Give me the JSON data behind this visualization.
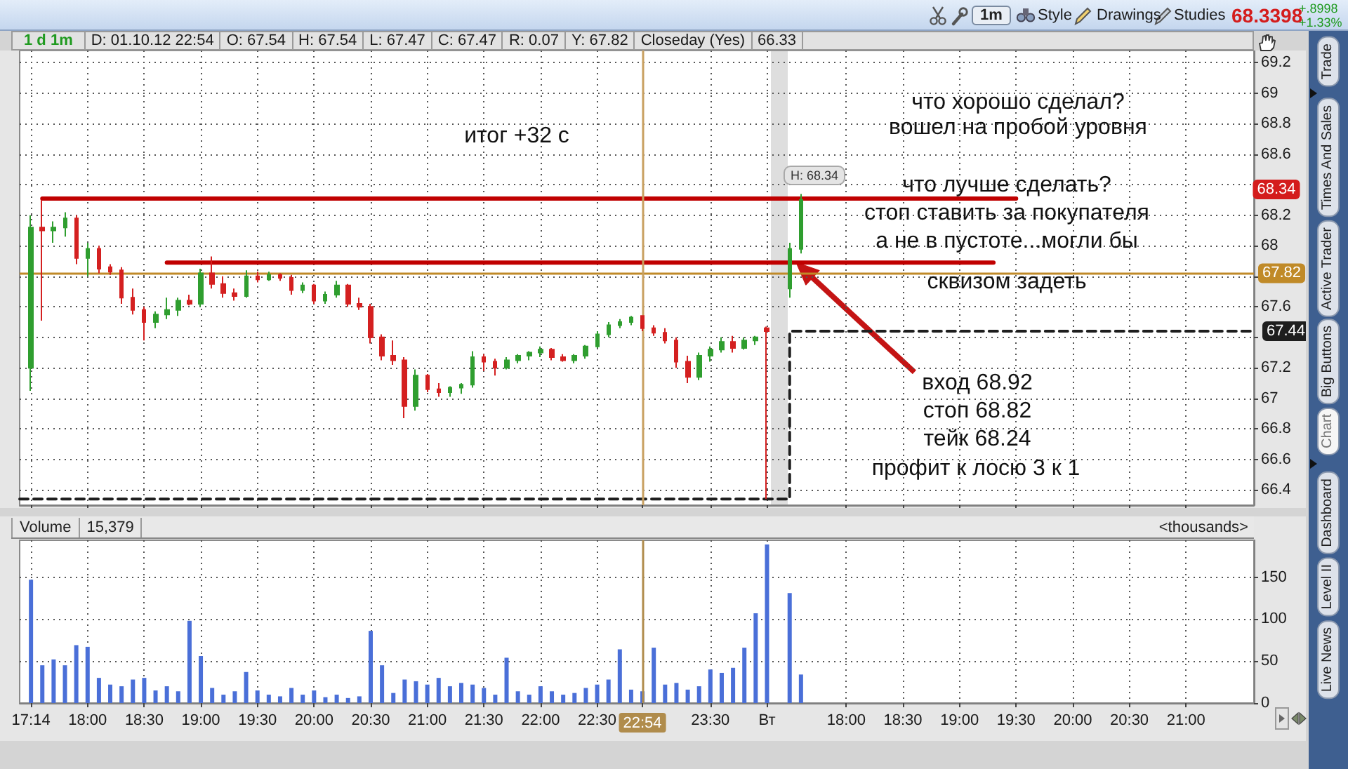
{
  "chart_data": [
    {
      "type": "candlestick",
      "categories": [
        null,
        "17:14",
        null,
        null,
        null,
        null,
        "18:00",
        null,
        null,
        null,
        null,
        "18:30",
        null,
        null,
        null,
        null,
        "19:00",
        null,
        null,
        null,
        null,
        "19:30",
        null,
        null,
        null,
        null,
        "20:00",
        null,
        null,
        null,
        null,
        "20:30",
        null,
        null,
        null,
        null,
        "21:00",
        null,
        null,
        null,
        null,
        "21:30",
        null,
        null,
        null,
        null,
        "22:00",
        null,
        null,
        null,
        null,
        "22:30",
        null,
        null,
        null,
        "22:54",
        null,
        null,
        null,
        null,
        null,
        "23:30",
        null,
        null,
        null,
        null,
        "Вт",
        null,
        null,
        null,
        null,
        null,
        null,
        "18:00",
        null,
        null,
        null,
        null,
        "18:30",
        null,
        null,
        null,
        null,
        "19:00",
        null,
        null,
        null,
        null,
        "19:30",
        null,
        null,
        null,
        null,
        "20:00",
        null,
        null,
        null,
        null,
        "20:30",
        null,
        null,
        null,
        null,
        "21:00",
        null,
        null,
        null,
        null,
        null,
        null
      ],
      "ohlc": [
        null,
        [
          67.2,
          68.2,
          67.05,
          68.12
        ],
        [
          68.12,
          68.3,
          67.51,
          68.1
        ],
        [
          68.1,
          68.16,
          68.02,
          68.12
        ],
        [
          68.12,
          68.22,
          68.06,
          68.18
        ],
        [
          68.18,
          68.2,
          67.88,
          67.92
        ],
        [
          67.92,
          68.02,
          67.8,
          67.98
        ],
        [
          67.98,
          68,
          67.82,
          67.85
        ],
        [
          67.86,
          67.88,
          67.81,
          67.83
        ],
        [
          67.84,
          67.86,
          67.62,
          67.66
        ],
        [
          67.66,
          67.72,
          67.55,
          67.58
        ],
        [
          67.58,
          67.6,
          67.38,
          67.5
        ],
        [
          67.5,
          67.57,
          67.46,
          67.55
        ],
        [
          67.55,
          67.66,
          67.52,
          67.58
        ],
        [
          67.58,
          67.66,
          67.54,
          67.64
        ],
        [
          67.64,
          67.68,
          67.61,
          67.62
        ],
        [
          67.62,
          67.85,
          67.6,
          67.82
        ],
        [
          67.82,
          67.93,
          67.72,
          67.75
        ],
        [
          67.75,
          67.8,
          67.66,
          67.69
        ],
        [
          67.69,
          67.72,
          67.64,
          67.67
        ],
        [
          67.67,
          67.84,
          67.66,
          67.8
        ],
        [
          67.8,
          67.83,
          67.76,
          67.78
        ],
        [
          67.78,
          67.83,
          67.77,
          67.81
        ],
        [
          67.81,
          67.82,
          67.77,
          67.79
        ],
        [
          67.79,
          67.81,
          67.68,
          67.71
        ],
        [
          67.71,
          67.76,
          67.69,
          67.74
        ],
        [
          67.74,
          67.75,
          67.62,
          67.64
        ],
        [
          67.64,
          67.7,
          67.62,
          67.68
        ],
        [
          67.68,
          67.77,
          67.66,
          67.74
        ],
        [
          67.74,
          67.75,
          67.6,
          67.62
        ],
        [
          67.62,
          67.66,
          67.58,
          67.6
        ],
        [
          67.6,
          67.62,
          67.36,
          67.4
        ],
        [
          67.4,
          67.42,
          67.25,
          67.28
        ],
        [
          67.28,
          67.38,
          67.22,
          67.25
        ],
        [
          67.25,
          67.27,
          66.87,
          66.95
        ],
        [
          66.95,
          67.19,
          66.92,
          67.15
        ],
        [
          67.15,
          67.16,
          67.04,
          67.06
        ],
        [
          67.06,
          67.1,
          67.01,
          67.04
        ],
        [
          67.04,
          67.08,
          67.01,
          67.07
        ],
        [
          67.07,
          67.1,
          67.03,
          67.09
        ],
        [
          67.09,
          67.31,
          67.07,
          67.27
        ],
        [
          67.27,
          67.29,
          67.18,
          67.24
        ],
        [
          67.24,
          67.26,
          67.15,
          67.2
        ],
        [
          67.2,
          67.27,
          67.19,
          67.25
        ],
        [
          67.25,
          67.29,
          67.23,
          67.28
        ],
        [
          67.28,
          67.31,
          67.25,
          67.3
        ],
        [
          67.3,
          67.34,
          67.27,
          67.32
        ],
        [
          67.32,
          67.33,
          67.25,
          67.27
        ],
        [
          67.27,
          67.29,
          67.24,
          67.25
        ],
        [
          67.25,
          67.29,
          67.23,
          67.28
        ],
        [
          67.28,
          67.35,
          67.26,
          67.34
        ],
        [
          67.34,
          67.44,
          67.33,
          67.42
        ],
        [
          67.42,
          67.5,
          67.4,
          67.48
        ],
        [
          67.48,
          67.52,
          67.46,
          67.5
        ],
        [
          67.5,
          67.54,
          67.48,
          67.53
        ],
        [
          67.54,
          67.54,
          67.44,
          67.46
        ],
        [
          67.46,
          67.48,
          67.41,
          67.43
        ],
        [
          67.43,
          67.46,
          67.36,
          67.38
        ],
        [
          67.38,
          67.4,
          67.2,
          67.24
        ],
        [
          67.24,
          67.28,
          67.1,
          67.14
        ],
        [
          67.14,
          67.3,
          67.12,
          67.28
        ],
        [
          67.28,
          67.34,
          67.24,
          67.32
        ],
        [
          67.32,
          67.4,
          67.3,
          67.37
        ],
        [
          67.37,
          67.41,
          67.3,
          67.33
        ],
        [
          67.33,
          67.4,
          67.32,
          67.38
        ],
        [
          67.38,
          67.41,
          67.35,
          67.4
        ],
        [
          67.46,
          67.47,
          66.34,
          67.44
        ],
        null,
        [
          67.72,
          68.02,
          67.66,
          67.98
        ],
        [
          67.98,
          68.34,
          67.95,
          68.3
        ],
        null,
        null,
        null,
        null,
        null,
        null,
        null,
        null,
        null,
        null,
        null,
        null,
        null,
        null,
        null,
        null,
        null,
        null,
        null,
        null,
        null,
        null,
        null,
        null,
        null,
        null,
        null,
        null,
        null,
        null,
        null,
        null,
        null,
        null,
        null,
        null,
        null,
        null,
        null,
        null
      ],
      "series": [
        {
          "type": "line",
          "color": "#c00000",
          "values": [
            null,
            null,
            68.31,
            68.31,
            68.31,
            68.31,
            68.31,
            68.31,
            68.31,
            68.31,
            68.31,
            68.31,
            68.31,
            68.31,
            68.31,
            68.31,
            68.31,
            68.31,
            68.31,
            68.31,
            68.31,
            68.31,
            68.31,
            68.31,
            68.31,
            68.31,
            68.31,
            68.31,
            68.31,
            68.31,
            68.31,
            68.31,
            68.31,
            68.31,
            68.31,
            68.31,
            68.31,
            68.31,
            68.31,
            68.31,
            68.31,
            68.31,
            68.31,
            68.31,
            68.31,
            68.31,
            68.31,
            68.31,
            68.31,
            68.31,
            68.31,
            68.31,
            68.31,
            68.31,
            68.31,
            68.31,
            68.31,
            68.31,
            68.31,
            68.31,
            68.31,
            68.31,
            68.31,
            68.31,
            68.31,
            68.31,
            68.31,
            68.31,
            68.31,
            68.31,
            68.31,
            68.31,
            68.31,
            68.31,
            68.31,
            68.31,
            68.31,
            68.31,
            68.31,
            68.31,
            68.31,
            68.31,
            68.31,
            68.31,
            68.31,
            68.31,
            68.31,
            68.31,
            68.31,
            null,
            null,
            null,
            null,
            null,
            null,
            null,
            null,
            null,
            null,
            null,
            null,
            null,
            null,
            null,
            null,
            null,
            null,
            null,
            null,
            null
          ]
        },
        {
          "type": "line",
          "color": "#c00000",
          "values": [
            null,
            null,
            null,
            null,
            null,
            null,
            null,
            null,
            null,
            null,
            null,
            null,
            null,
            67.89,
            67.89,
            67.89,
            67.89,
            67.89,
            67.89,
            67.89,
            67.89,
            67.89,
            67.89,
            67.89,
            67.89,
            67.89,
            67.89,
            67.89,
            67.89,
            67.89,
            67.89,
            67.89,
            67.89,
            67.89,
            67.89,
            67.89,
            67.89,
            67.89,
            67.89,
            67.89,
            67.89,
            67.89,
            67.89,
            67.89,
            67.89,
            67.89,
            67.89,
            67.89,
            67.89,
            67.89,
            67.89,
            67.89,
            67.89,
            67.89,
            67.89,
            67.89,
            67.89,
            67.89,
            67.89,
            67.89,
            67.89,
            67.89,
            67.89,
            67.89,
            67.89,
            67.89,
            67.89,
            67.89,
            67.89,
            67.89,
            67.89,
            67.89,
            67.89,
            67.89,
            67.89,
            67.89,
            67.89,
            67.89,
            67.89,
            67.89,
            67.89,
            67.89,
            67.89,
            67.89,
            67.89,
            67.89,
            67.89,
            null,
            null,
            null,
            null,
            null,
            null,
            null,
            null,
            null,
            null,
            null,
            null,
            null,
            null,
            null,
            null,
            null,
            null,
            null,
            null,
            null,
            null,
            null
          ]
        },
        {
          "type": "step",
          "color": "#1e1e1e",
          "line_style": "dashed",
          "values": [
            66.34,
            66.34,
            66.34,
            66.34,
            66.34,
            66.34,
            66.34,
            66.34,
            66.34,
            66.34,
            66.34,
            66.34,
            66.34,
            66.34,
            66.34,
            66.34,
            66.34,
            66.34,
            66.34,
            66.34,
            66.34,
            66.34,
            66.34,
            66.34,
            66.34,
            66.34,
            66.34,
            66.34,
            66.34,
            66.34,
            66.34,
            66.34,
            66.34,
            66.34,
            66.34,
            66.34,
            66.34,
            66.34,
            66.34,
            66.34,
            66.34,
            66.34,
            66.34,
            66.34,
            66.34,
            66.34,
            66.34,
            66.34,
            66.34,
            66.34,
            66.34,
            66.34,
            66.34,
            66.34,
            66.34,
            66.34,
            66.34,
            66.34,
            66.34,
            66.34,
            66.34,
            66.34,
            66.34,
            66.34,
            66.34,
            66.34,
            66.34,
            66.34,
            67.44,
            67.44,
            67.44,
            67.44,
            67.44,
            67.44,
            67.44,
            67.44,
            67.44,
            67.44,
            67.44,
            67.44,
            67.44,
            67.44,
            67.44,
            67.44,
            67.44,
            67.44,
            67.44,
            67.44,
            67.44,
            67.44,
            67.44,
            67.44,
            67.44,
            67.44,
            67.44,
            67.44,
            67.44,
            67.44,
            67.44,
            67.44,
            67.44,
            67.44,
            67.44,
            67.44,
            67.44,
            67.44,
            67.44,
            67.44,
            67.44,
            67.44
          ],
          "value_labels": [
            null,
            null,
            null,
            null,
            null,
            null,
            null,
            null,
            null,
            null,
            null,
            null,
            null,
            null,
            null,
            null,
            null,
            null,
            null,
            null,
            null,
            null,
            null,
            null,
            null,
            null,
            null,
            null,
            null,
            null,
            null,
            null,
            null,
            null,
            null,
            null,
            null,
            null,
            null,
            null,
            null,
            null,
            null,
            null,
            null,
            null,
            null,
            null,
            null,
            null,
            null,
            null,
            null,
            null,
            null,
            null,
            null,
            null,
            null,
            null,
            null,
            null,
            null,
            null,
            null,
            null,
            null,
            null,
            null,
            null,
            null,
            null,
            null,
            null,
            null,
            null,
            null,
            null,
            null,
            null,
            null,
            null,
            null,
            null,
            null,
            null,
            null,
            null,
            null,
            null,
            null,
            null,
            null,
            null,
            null,
            null,
            null,
            null,
            null,
            null,
            null,
            null,
            null,
            null,
            null,
            null,
            null,
            null,
            null,
            "67.44"
          ]
        }
      ],
      "ylim": [
        66.3,
        69.28
      ],
      "yticks": [
        66.4,
        66.6,
        66.8,
        67,
        67.2,
        {
          "value": 67.4,
          "label": null
        },
        67.6,
        {
          "value": 67.8,
          "label": null
        },
        68,
        68.2,
        {
          "value": 68.4,
          "label": null
        },
        68.6,
        68.8,
        69,
        69.2
      ],
      "grid": true,
      "tick_labels": "y",
      "ref_lines": [
        {
          "axis": "y",
          "value": 67.82,
          "label": "67.82",
          "color": "#c08a28"
        },
        {
          "axis": "x",
          "value": "22:54",
          "color": "#c8a060"
        }
      ],
      "annotations": [
        "итог +32 с",
        "что хорошо сделал?",
        "вошел на пробой уровня",
        "что лучше сделать?",
        "стоп ставить за покупателя",
        "а не в пустоте...могли бы",
        "сквизом задеть",
        "вход 68.92",
        "стоп 68.82",
        "тейк 68.24",
        "профит к лосю 3 к 1",
        "H: 68.34",
        "68.34"
      ]
    },
    {
      "type": "bar",
      "title": "Volume",
      "subtitle": "15,379",
      "ylabel": "<thousands>",
      "categories": [
        null,
        "17:14",
        null,
        null,
        null,
        null,
        "18:00",
        null,
        null,
        null,
        null,
        "18:30",
        null,
        null,
        null,
        null,
        "19:00",
        null,
        null,
        null,
        null,
        "19:30",
        null,
        null,
        null,
        null,
        "20:00",
        null,
        null,
        null,
        null,
        "20:30",
        null,
        null,
        null,
        null,
        "21:00",
        null,
        null,
        null,
        null,
        "21:30",
        null,
        null,
        null,
        null,
        "22:00",
        null,
        null,
        null,
        null,
        "22:30",
        null,
        null,
        null,
        "22:54",
        null,
        null,
        null,
        null,
        null,
        "23:30",
        null,
        null,
        null,
        null,
        "Вт",
        null,
        null,
        null,
        null,
        null,
        null,
        "18:00",
        null,
        null,
        null,
        null,
        "18:30",
        null,
        null,
        null,
        null,
        "19:00",
        null,
        null,
        null,
        null,
        "19:30",
        null,
        null,
        null,
        null,
        "20:00",
        null,
        null,
        null,
        null,
        "20:30",
        null,
        null,
        null,
        null,
        "21:00",
        null,
        null,
        null,
        null,
        null,
        null
      ],
      "values": [
        null,
        147,
        45,
        52,
        45,
        69,
        67,
        30,
        22,
        20,
        28,
        30,
        15,
        20,
        14,
        98,
        56,
        18,
        10,
        14,
        37,
        15,
        10,
        8,
        18,
        10,
        15,
        7,
        10,
        6,
        8,
        86,
        45,
        12,
        28,
        26,
        22,
        30,
        20,
        24,
        22,
        18,
        10,
        54,
        14,
        10,
        20,
        14,
        10,
        12,
        18,
        22,
        28,
        64,
        16,
        14,
        66,
        22,
        24,
        16,
        20,
        40,
        36,
        42,
        66,
        107,
        189,
        null,
        131,
        34,
        null,
        null,
        null,
        null,
        null,
        null,
        null,
        null,
        null,
        null,
        null,
        null,
        null,
        null,
        null,
        null,
        null,
        null,
        null,
        null,
        null,
        null,
        null,
        null,
        null,
        null,
        null,
        null,
        null,
        null,
        null,
        null,
        null,
        null,
        null,
        null,
        null,
        null,
        null,
        null
      ],
      "color": "#4a6fd8",
      "ylim": [
        0,
        194
      ],
      "yticks": [
        0,
        50,
        100,
        150
      ],
      "grid": true,
      "ref_lines": [
        {
          "axis": "x",
          "value": "22:54",
          "color": "#b08c4c"
        }
      ]
    },
    {
      "type": "other",
      "title": "1 d 1m",
      "annotations": [
        "D: 01.10.12 22:54",
        "O: 67.54",
        "H: 67.54",
        "L: 67.47",
        "C: 67.47",
        "R: 0.07",
        "Y: 67.82",
        "Closeday (Yes)",
        "66.33"
      ]
    },
    {
      "type": "other",
      "annotations": [
        "1m",
        "Style",
        "Drawings",
        "Studies",
        "68.3398",
        "+.8998",
        "+1.33%"
      ]
    },
    {
      "type": "other",
      "annotations": [
        "Trade",
        "Times And Sales",
        "Active Trader",
        "Big Buttons",
        "Chart",
        "Dashboard",
        "Level II",
        "Live News"
      ]
    }
  ]
}
